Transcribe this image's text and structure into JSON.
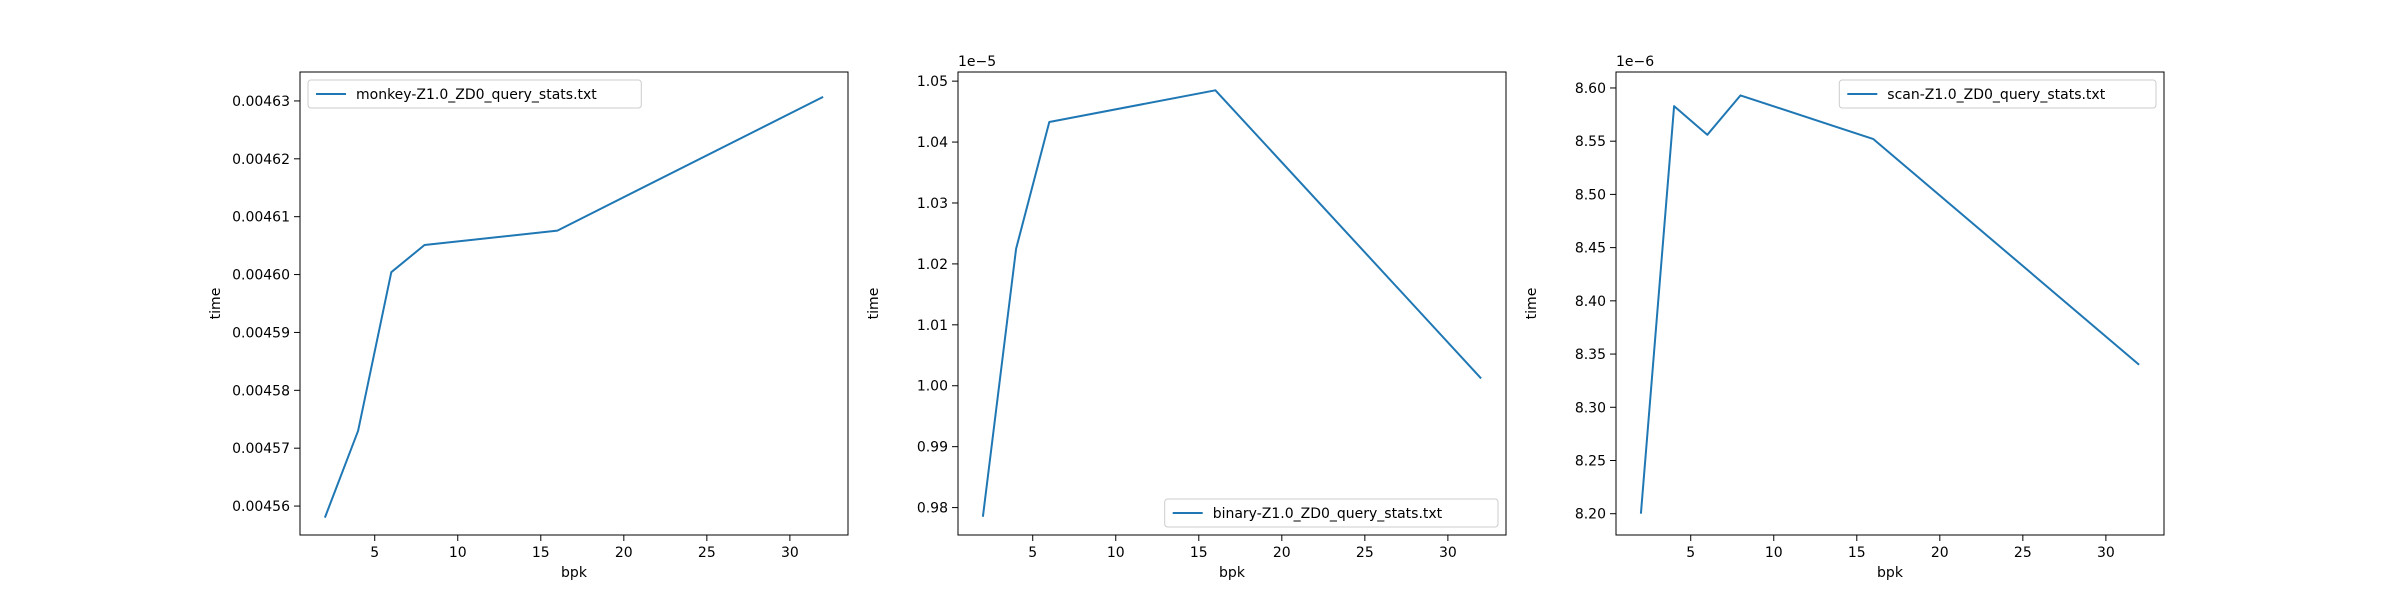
{
  "chart_data": [
    {
      "type": "line",
      "xlabel": "bpk",
      "ylabel": "time",
      "offset_text": "",
      "legend_loc": "upper-left",
      "xlim": [
        0.5,
        33.5
      ],
      "ylim": [
        0.004555,
        0.004635
      ],
      "xticks": [
        5,
        10,
        15,
        20,
        25,
        30
      ],
      "xtick_labels": [
        "5",
        "10",
        "15",
        "20",
        "25",
        "30"
      ],
      "yticks": [
        0.00456,
        0.00457,
        0.00458,
        0.00459,
        0.0046,
        0.00461,
        0.00462,
        0.00463
      ],
      "ytick_labels": [
        "0.00456",
        "0.00457",
        "0.00458",
        "0.00459",
        "0.00460",
        "0.00461",
        "0.00462",
        "0.00463"
      ],
      "series": [
        {
          "name": "monkey-Z1.0_ZD0_query_stats.txt",
          "color": "#1f77b4",
          "x": [
            2,
            4,
            6,
            8,
            16,
            32
          ],
          "y": [
            0.004558,
            0.004573,
            0.0046004,
            0.0046051,
            0.0046076,
            0.0046307
          ]
        }
      ]
    },
    {
      "type": "line",
      "xlabel": "bpk",
      "ylabel": "time",
      "offset_text": "1e−5",
      "legend_loc": "lower-right",
      "xlim": [
        0.5,
        33.5
      ],
      "ylim": [
        0.9755,
        1.0515
      ],
      "xticks": [
        5,
        10,
        15,
        20,
        25,
        30
      ],
      "xtick_labels": [
        "5",
        "10",
        "15",
        "20",
        "25",
        "30"
      ],
      "yticks": [
        0.98,
        0.99,
        1.0,
        1.01,
        1.02,
        1.03,
        1.04,
        1.05
      ],
      "ytick_labels": [
        "0.98",
        "0.99",
        "1.00",
        "1.01",
        "1.02",
        "1.03",
        "1.04",
        "1.05"
      ],
      "series": [
        {
          "name": "binary-Z1.0_ZD0_query_stats.txt",
          "color": "#1f77b4",
          "x": [
            2,
            4,
            6,
            16,
            32
          ],
          "y": [
            0.9785,
            1.0225,
            1.0433,
            1.0485,
            1.0012
          ]
        }
      ]
    },
    {
      "type": "line",
      "xlabel": "bpk",
      "ylabel": "time",
      "offset_text": "1e−6",
      "legend_loc": "upper-right",
      "xlim": [
        0.5,
        33.5
      ],
      "ylim": [
        8.18,
        8.615
      ],
      "xticks": [
        5,
        10,
        15,
        20,
        25,
        30
      ],
      "xtick_labels": [
        "5",
        "10",
        "15",
        "20",
        "25",
        "30"
      ],
      "yticks": [
        8.2,
        8.25,
        8.3,
        8.35,
        8.4,
        8.45,
        8.5,
        8.55,
        8.6
      ],
      "ytick_labels": [
        "8.20",
        "8.25",
        "8.30",
        "8.35",
        "8.40",
        "8.45",
        "8.50",
        "8.55",
        "8.60"
      ],
      "series": [
        {
          "name": "scan-Z1.0_ZD0_query_stats.txt",
          "color": "#1f77b4",
          "x": [
            2,
            4,
            6,
            8,
            16,
            32
          ],
          "y": [
            8.2,
            8.583,
            8.556,
            8.593,
            8.552,
            8.34
          ]
        }
      ]
    }
  ]
}
